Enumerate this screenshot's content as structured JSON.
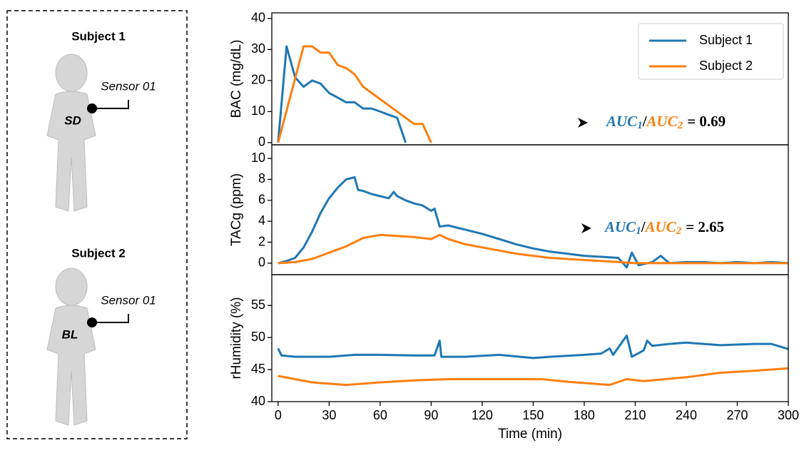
{
  "chart_data": [
    {
      "type": "line",
      "y_label": "BAC (mg/dL)",
      "xlim": [
        -3.7,
        300
      ],
      "ylim": [
        -0.7,
        41.8
      ],
      "yticks": [
        0,
        10,
        20,
        30,
        40
      ],
      "legend": "upper right",
      "annotation": [
        "AUC",
        "1",
        "/",
        "AUC",
        "2",
        "= 0.69"
      ],
      "series": [
        {
          "name": "Subject 1",
          "color": "#1f77b4",
          "x": [
            0,
            5,
            10,
            15,
            20,
            25,
            30,
            35,
            40,
            45,
            50,
            55,
            60,
            65,
            70,
            75
          ],
          "values": [
            0,
            31,
            21,
            18,
            20,
            19,
            16,
            14.5,
            13,
            13,
            11,
            11,
            10,
            9,
            8,
            0
          ]
        },
        {
          "name": "Subject 2",
          "color": "#ff7f0e",
          "x": [
            0,
            15,
            20,
            25,
            30,
            35,
            40,
            45,
            50,
            55,
            60,
            65,
            70,
            75,
            80,
            85,
            90
          ],
          "values": [
            0,
            31,
            31,
            29,
            29,
            25,
            24,
            22,
            18,
            16,
            14,
            12,
            10,
            8,
            6,
            6,
            0
          ]
        }
      ]
    },
    {
      "type": "line",
      "y_label": "TACg (ppm)",
      "xlim": [
        -3.7,
        300
      ],
      "ylim": [
        -1.1,
        11.3
      ],
      "yticks": [
        0,
        2,
        4,
        6,
        8,
        10
      ],
      "annotation": [
        "AUC",
        "1",
        "/",
        "AUC",
        "2",
        "= 2.65"
      ],
      "series": [
        {
          "name": "Subject 1",
          "color": "#1f77b4",
          "x": [
            0,
            5,
            10,
            15,
            20,
            25,
            30,
            35,
            40,
            45,
            47,
            50,
            55,
            60,
            65,
            68,
            70,
            75,
            80,
            85,
            90,
            92,
            95,
            100,
            105,
            110,
            120,
            130,
            140,
            150,
            160,
            170,
            180,
            190,
            200,
            205,
            208,
            212,
            220,
            225,
            230,
            240,
            250,
            260,
            270,
            280,
            290,
            300
          ],
          "values": [
            0,
            0.2,
            0.5,
            1.5,
            3,
            4.8,
            6.2,
            7.2,
            8,
            8.2,
            7,
            6.9,
            6.6,
            6.4,
            6.2,
            6.8,
            6.4,
            6,
            5.7,
            5.5,
            5,
            5.2,
            3.5,
            3.6,
            3.4,
            3.2,
            2.8,
            2.3,
            1.8,
            1.4,
            1.1,
            0.9,
            0.7,
            0.6,
            0.5,
            -0.4,
            1,
            -0.2,
            0.1,
            0.7,
            0,
            0.1,
            0.1,
            0,
            0.1,
            0,
            0.1,
            0
          ]
        },
        {
          "name": "Subject 2",
          "color": "#ff7f0e",
          "x": [
            0,
            10,
            20,
            30,
            40,
            50,
            60,
            70,
            80,
            90,
            95,
            100,
            110,
            120,
            130,
            140,
            150,
            160,
            170,
            180,
            190,
            200,
            210,
            220,
            240,
            260,
            280,
            300
          ],
          "values": [
            0,
            0.1,
            0.4,
            1,
            1.6,
            2.4,
            2.7,
            2.6,
            2.5,
            2.3,
            2.7,
            2.3,
            1.8,
            1.5,
            1.2,
            0.9,
            0.7,
            0.5,
            0.4,
            0.3,
            0.2,
            0.1,
            0,
            0,
            0,
            0,
            0,
            0
          ]
        }
      ]
    },
    {
      "type": "line",
      "y_label": "rHumidity (%)",
      "x_label": "Time (min)",
      "xlim": [
        -3.7,
        300
      ],
      "ylim": [
        40,
        59.8
      ],
      "xticks": [
        0,
        30,
        60,
        90,
        120,
        150,
        180,
        210,
        240,
        270,
        300
      ],
      "yticks": [
        40,
        45,
        50,
        55
      ],
      "series": [
        {
          "name": "Subject 1",
          "color": "#1f77b4",
          "x": [
            0,
            2,
            10,
            30,
            45,
            60,
            80,
            92,
            95,
            96,
            110,
            130,
            150,
            160,
            180,
            190,
            195,
            197,
            205,
            208,
            215,
            217,
            220,
            230,
            240,
            260,
            280,
            290,
            300
          ],
          "values": [
            48.3,
            47.2,
            47,
            47,
            47.3,
            47.3,
            47.2,
            47.2,
            49.5,
            47,
            47,
            47.3,
            46.8,
            47,
            47.3,
            47.5,
            48.3,
            47.3,
            50.3,
            47,
            48,
            49.5,
            48.7,
            49,
            49.2,
            48.8,
            49,
            49,
            48.2
          ]
        },
        {
          "name": "Subject 2",
          "color": "#ff7f0e",
          "x": [
            0,
            10,
            20,
            40,
            60,
            80,
            100,
            120,
            140,
            155,
            170,
            185,
            195,
            205,
            215,
            240,
            260,
            280,
            300
          ],
          "values": [
            44,
            43.5,
            43,
            42.6,
            43,
            43.3,
            43.5,
            43.5,
            43.5,
            43.5,
            43.1,
            42.8,
            42.6,
            43.5,
            43.2,
            43.8,
            44.5,
            44.8,
            45.2
          ]
        }
      ]
    }
  ],
  "subjects": [
    {
      "label": "Subject 1",
      "sensor": "Sensor 01",
      "site": "SD"
    },
    {
      "label": "Subject 2",
      "sensor": "Sensor 01",
      "site": "BL"
    }
  ]
}
